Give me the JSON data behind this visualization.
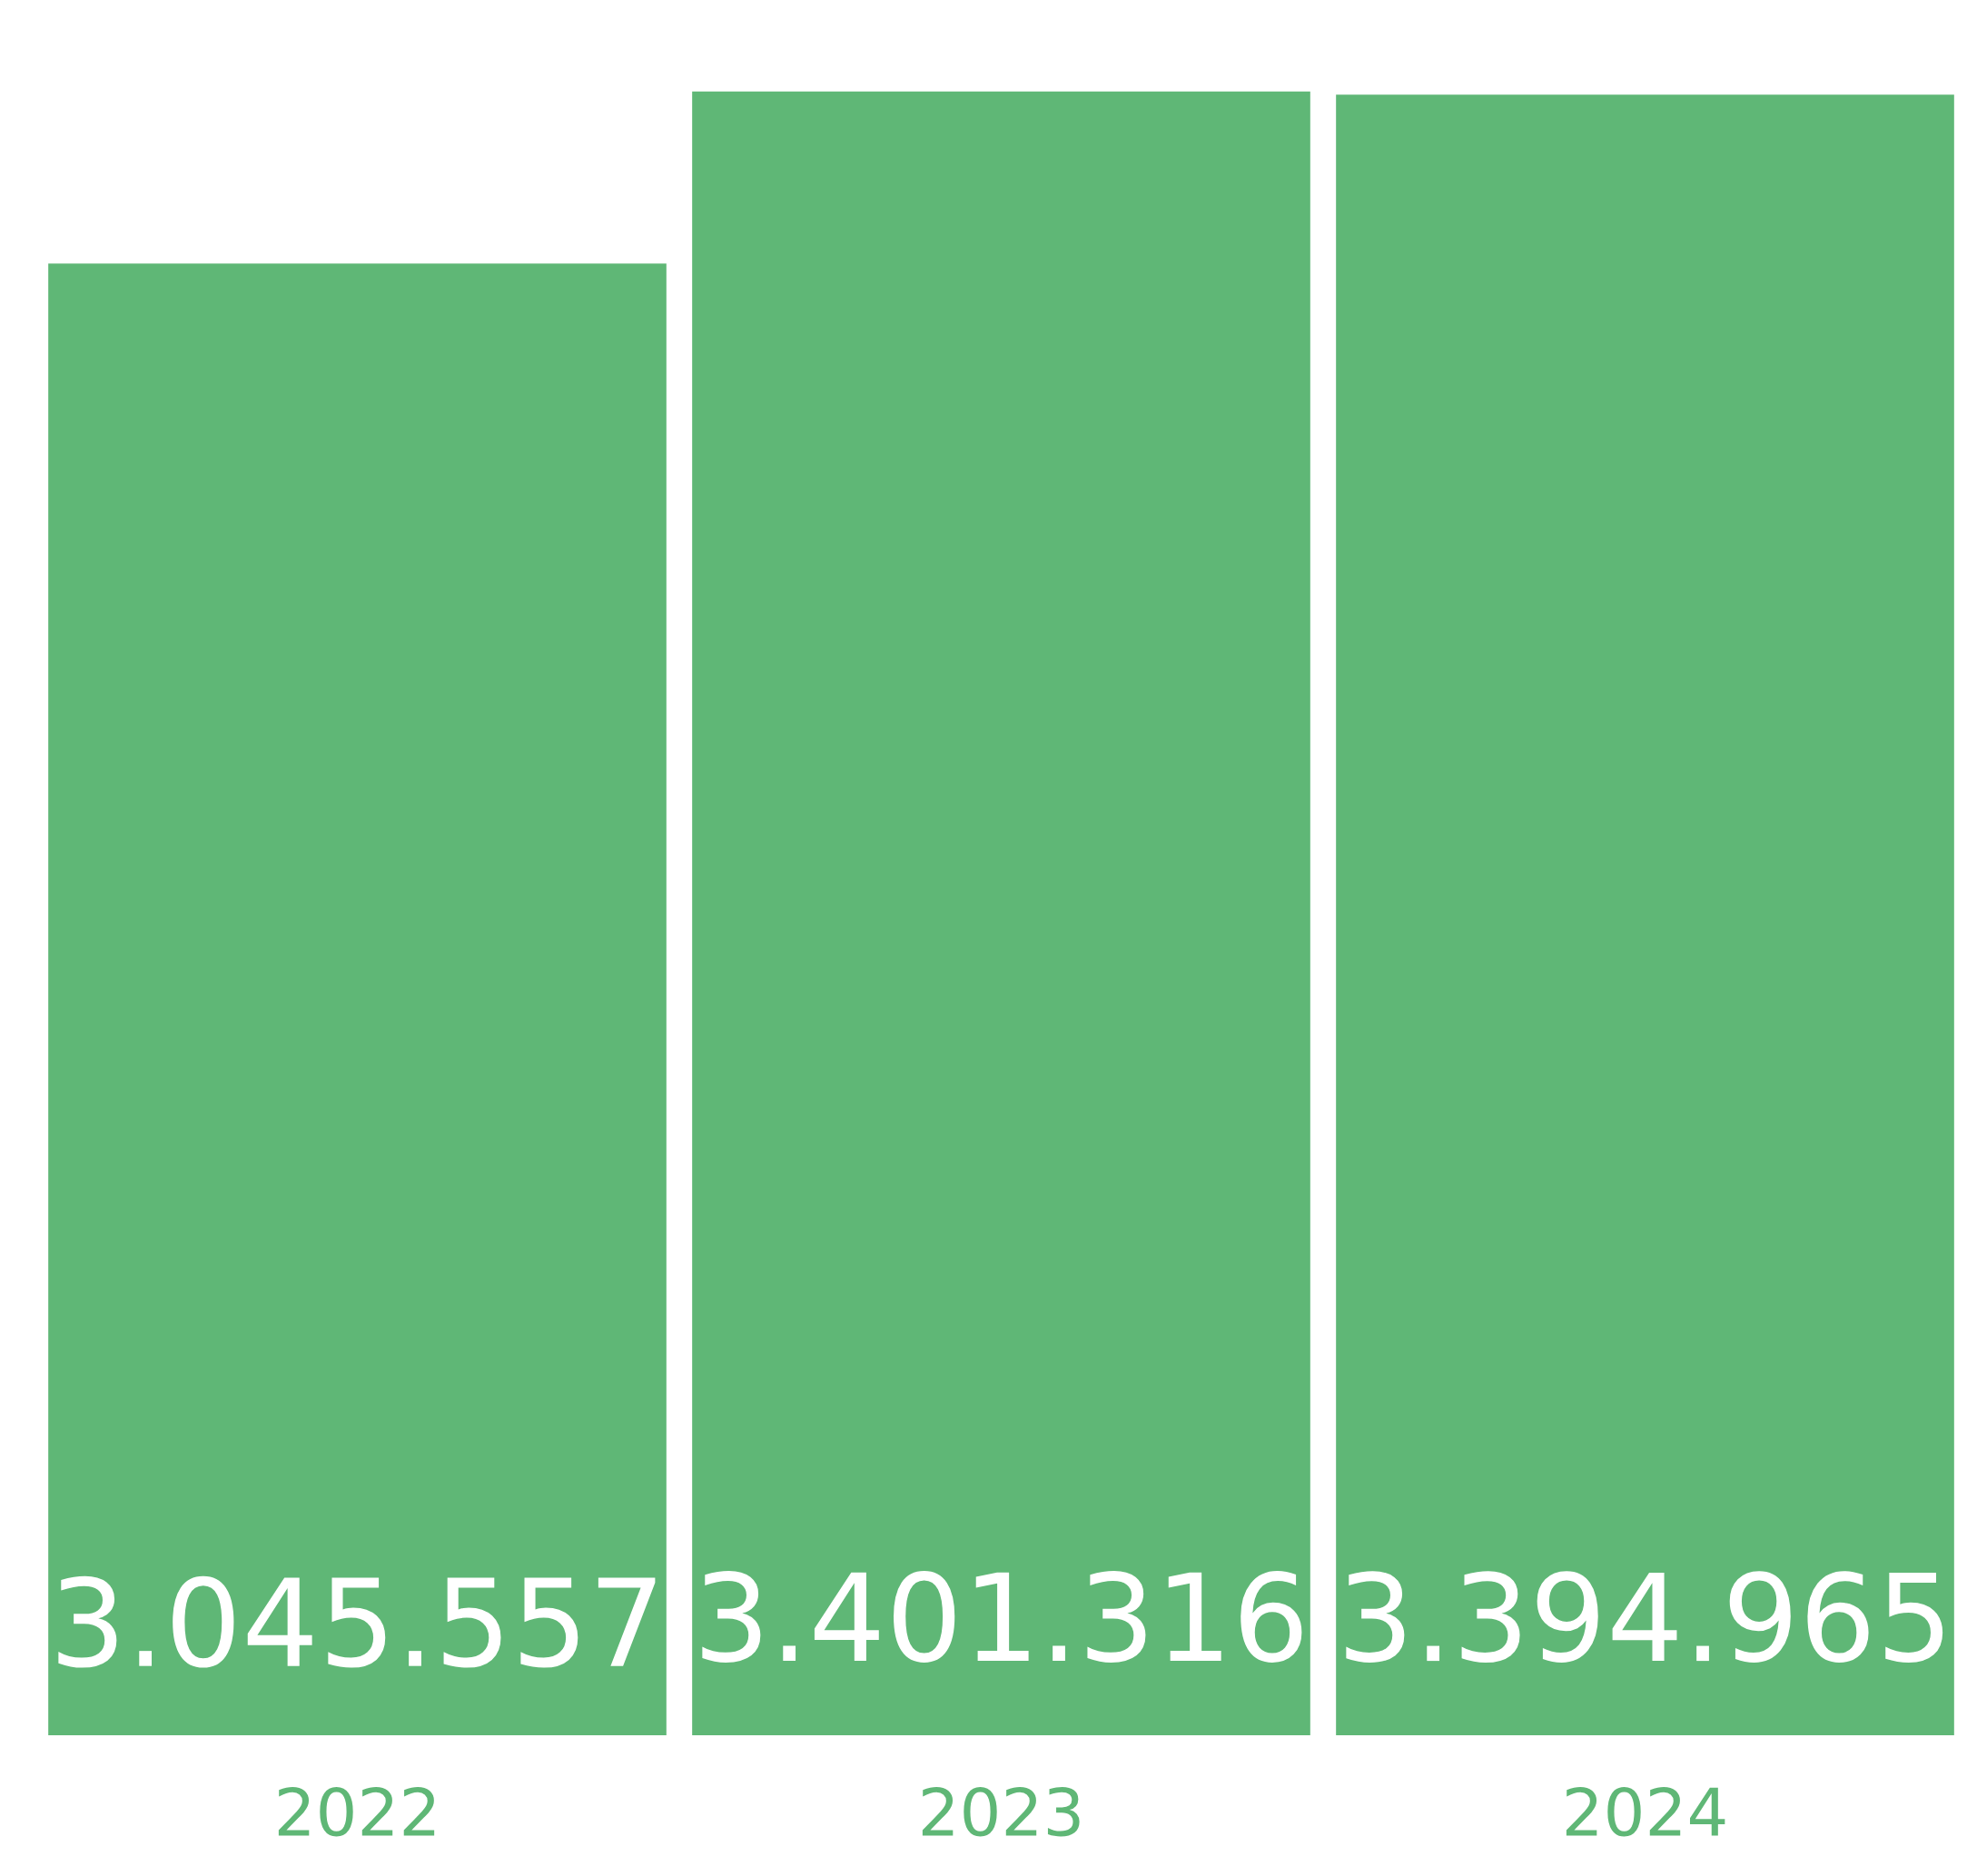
{
  "chart_data": {
    "type": "bar",
    "categories": [
      "2022",
      "2023",
      "2024"
    ],
    "values": [
      3045557,
      3401316,
      3394965
    ],
    "value_labels": [
      "3.045.557",
      "3.401.316",
      "3.394.965"
    ],
    "color": "#5fb776",
    "tick_labels": "x",
    "grid": false,
    "legend": false
  }
}
